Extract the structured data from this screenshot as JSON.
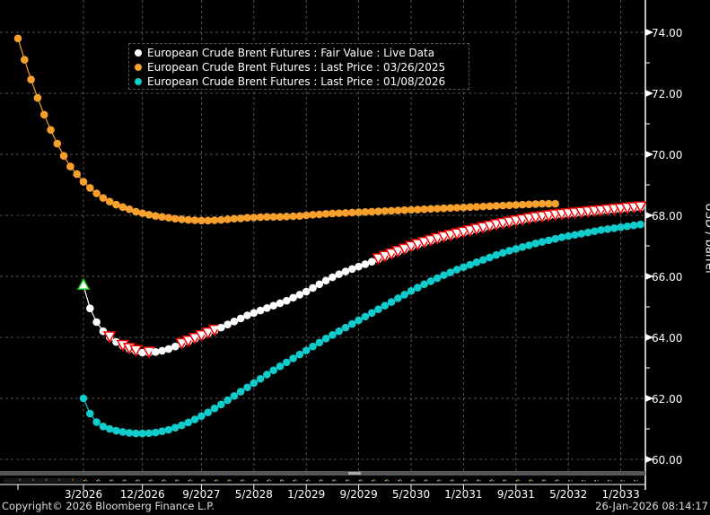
{
  "chart_data": {
    "type": "line",
    "title": "",
    "xlabel": "",
    "ylabel": "USD / barrel",
    "ylim": [
      60,
      74
    ],
    "y_ticks": [
      "60.00",
      "62.00",
      "64.00",
      "66.00",
      "68.00",
      "70.00",
      "72.00",
      "74.00"
    ],
    "x_ticks": [
      "3/2026",
      "12/2026",
      "9/2027",
      "5/2028",
      "1/2029",
      "9/2029",
      "5/2030",
      "1/2031",
      "9/2031",
      "5/2032",
      "1/2033"
    ],
    "x_frequency": "monthly",
    "grid": true,
    "legend_position": "top-left",
    "series": [
      {
        "name": "European Crude Brent Futures : Fair Value : Live Data",
        "color": "#ffffff",
        "x_start": "2026-03",
        "values": [
          65.7,
          64.95,
          64.5,
          64.2,
          64.0,
          63.85,
          63.72,
          63.62,
          63.55,
          63.5,
          63.5,
          63.52,
          63.56,
          63.62,
          63.7,
          63.78,
          63.86,
          63.95,
          64.04,
          64.13,
          64.22,
          64.32,
          64.42,
          64.52,
          64.62,
          64.72,
          64.8,
          64.88,
          64.96,
          65.04,
          65.12,
          65.2,
          65.3,
          65.4,
          65.5,
          65.62,
          65.74,
          65.86,
          65.97,
          66.07,
          66.16,
          66.24,
          66.32,
          66.4,
          66.48,
          66.56,
          66.64,
          66.72,
          66.8,
          66.88,
          66.96,
          67.03,
          67.1,
          67.16,
          67.22,
          67.28,
          67.33,
          67.38,
          67.43,
          67.48,
          67.53,
          67.58,
          67.63,
          67.68,
          67.72,
          67.76,
          67.8,
          67.84,
          67.88,
          67.91,
          67.94,
          67.97,
          68.0,
          68.02,
          68.04,
          68.06,
          68.08,
          68.1,
          68.12,
          68.14,
          68.16,
          68.18,
          68.2,
          68.22,
          68.24,
          68.26
        ],
        "up_marker_indices": [
          0
        ],
        "down_marker_indices": [
          4,
          6,
          7,
          8,
          10,
          15,
          16,
          17,
          18,
          19,
          20,
          45,
          46,
          47,
          48,
          49,
          50,
          51,
          52,
          53,
          54,
          55,
          56,
          57,
          58,
          59,
          60,
          61,
          62,
          63,
          64,
          65,
          66,
          67,
          68,
          69,
          70,
          71,
          72,
          73,
          74,
          75,
          76,
          77,
          78,
          79,
          80,
          81,
          82,
          83,
          84,
          85
        ]
      },
      {
        "name": "European Crude Brent Futures : Last Price : 03/26/2025",
        "color": "#f7a12c",
        "x_start": "2025-05",
        "values": [
          73.8,
          73.1,
          72.45,
          71.85,
          71.3,
          70.8,
          70.35,
          69.95,
          69.6,
          69.35,
          69.1,
          68.9,
          68.72,
          68.57,
          68.45,
          68.35,
          68.27,
          68.2,
          68.12,
          68.07,
          68.02,
          67.98,
          67.95,
          67.92,
          67.89,
          67.87,
          67.85,
          67.84,
          67.83,
          67.83,
          67.84,
          67.85,
          67.87,
          67.89,
          67.9,
          67.92,
          67.93,
          67.94,
          67.95,
          67.95,
          67.95,
          67.96,
          67.97,
          67.98,
          68.0,
          68.02,
          68.03,
          68.05,
          68.06,
          68.07,
          68.08,
          68.09,
          68.1,
          68.11,
          68.12,
          68.13,
          68.14,
          68.15,
          68.16,
          68.17,
          68.18,
          68.19,
          68.2,
          68.21,
          68.22,
          68.23,
          68.24,
          68.25,
          68.26,
          68.27,
          68.28,
          68.29,
          68.3,
          68.31,
          68.32,
          68.33,
          68.34,
          68.35,
          68.36,
          68.37,
          68.38,
          68.38,
          68.38
        ]
      },
      {
        "name": "European Crude Brent Futures : Last Price : 01/08/2026",
        "color": "#10cccc",
        "x_start": "2026-03",
        "values": [
          62.0,
          61.5,
          61.22,
          61.08,
          61.0,
          60.94,
          60.9,
          60.87,
          60.85,
          60.85,
          60.86,
          60.88,
          60.92,
          60.97,
          61.04,
          61.12,
          61.21,
          61.31,
          61.42,
          61.54,
          61.67,
          61.8,
          61.94,
          62.08,
          62.22,
          62.36,
          62.5,
          62.64,
          62.78,
          62.92,
          63.05,
          63.18,
          63.31,
          63.44,
          63.57,
          63.7,
          63.83,
          63.96,
          64.08,
          64.2,
          64.32,
          64.44,
          64.56,
          64.68,
          64.8,
          64.92,
          65.04,
          65.16,
          65.28,
          65.4,
          65.52,
          65.63,
          65.74,
          65.84,
          65.94,
          66.04,
          66.13,
          66.22,
          66.3,
          66.38,
          66.46,
          66.54,
          66.62,
          66.7,
          66.77,
          66.84,
          66.9,
          66.96,
          67.02,
          67.08,
          67.13,
          67.18,
          67.23,
          67.28,
          67.32,
          67.36,
          67.4,
          67.44,
          67.48,
          67.52,
          67.55,
          67.58,
          67.61,
          67.64,
          67.67,
          67.7
        ]
      }
    ]
  },
  "footer": {
    "copyright": "Copyright© 2026 Bloomberg Finance L.P.",
    "timestamp": "26-Jan-2026 08:14:17"
  }
}
